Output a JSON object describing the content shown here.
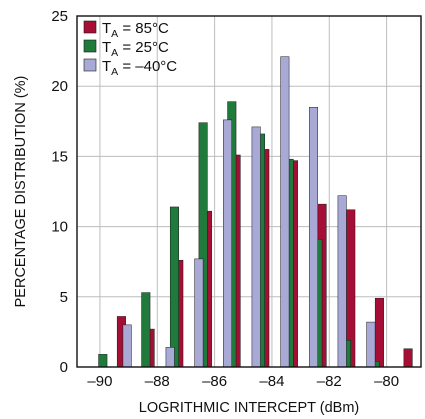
{
  "chart_data": {
    "type": "bar",
    "title": "",
    "xlabel": "LOGRITHMIC INTERCEPT (dBm)",
    "ylabel": "PERCENTAGE DISTRIBUTION (%)",
    "xlim": [
      -90.8,
      -78.8
    ],
    "ylim": [
      0,
      25
    ],
    "bin_width": 0.5,
    "x_ticks": [
      "-90",
      "-88",
      "-86",
      "-84",
      "-82",
      "-80"
    ],
    "x_tick_values": [
      -90,
      -88,
      -86,
      -84,
      -82,
      -80
    ],
    "y_ticks": [
      "0",
      "5",
      "10",
      "15",
      "20",
      "25"
    ],
    "y_tick_values": [
      0,
      5,
      10,
      15,
      20,
      25
    ],
    "grid": true,
    "legend_position": "top-left",
    "series": [
      {
        "name": "T",
        "subscript": "A",
        "suffix": " = 85°C",
        "color": "#a50e35",
        "x": [
          -89.25,
          -88.25,
          -87.25,
          -86.25,
          -85.25,
          -84.25,
          -83.25,
          -82.25,
          -81.25,
          -80.25,
          -79.25
        ],
        "values": [
          3.6,
          2.7,
          7.6,
          11.1,
          15.1,
          15.5,
          14.7,
          11.6,
          11.2,
          4.9,
          1.3
        ]
      },
      {
        "name": "T",
        "subscript": "A",
        "suffix": " = 25°C",
        "color": "#1f7a3c",
        "x": [
          -89.9,
          -88.4,
          -87.4,
          -86.4,
          -85.4,
          -84.4,
          -83.4,
          -82.4,
          -81.4,
          -80.4
        ],
        "values": [
          0.9,
          5.3,
          11.4,
          17.4,
          18.9,
          16.6,
          14.8,
          9.1,
          1.9,
          0.4
        ]
      },
      {
        "name": "T",
        "subscript": "A",
        "suffix": " = –40°C",
        "color": "#a9a9d6",
        "x": [
          -89.05,
          -87.55,
          -86.55,
          -85.55,
          -84.55,
          -83.55,
          -82.55,
          -81.55,
          -80.55
        ],
        "values": [
          3.0,
          1.4,
          7.7,
          17.6,
          17.1,
          22.1,
          18.5,
          12.2,
          3.2
        ]
      }
    ]
  }
}
